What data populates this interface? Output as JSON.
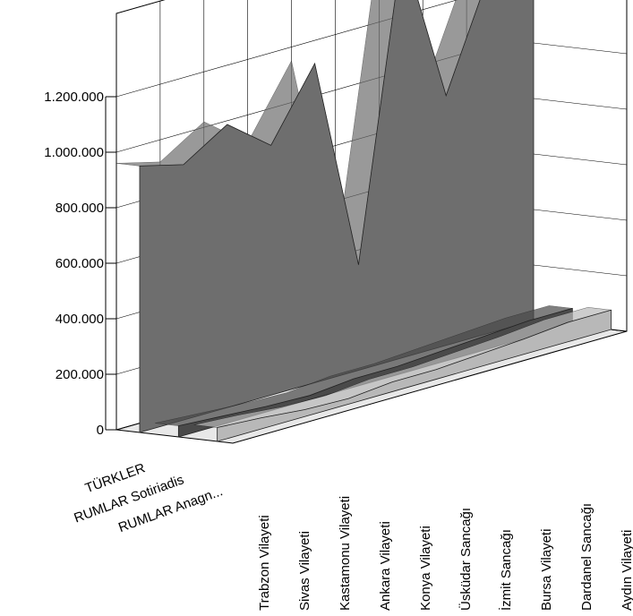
{
  "chart_data": {
    "type": "area3d",
    "categories": [
      "Trabzon Vilayeti",
      "Sivas Vilayeti",
      "Kastamonu Vilayeti",
      "Ankara Vilayeti",
      "Konya Vilayeti",
      "Üsküdar Sancağı",
      "İzmit Sancağı",
      "Bursa Vilayeti",
      "Dardanel Sancağı",
      "Aydın Vilayeti"
    ],
    "series": [
      {
        "name": "TÜRKLER",
        "color": "#6e6e6e",
        "values": [
          960000,
          920000,
          1020000,
          900000,
          1150000,
          380000,
          1480000,
          900000,
          1300000,
          1280000
        ]
      },
      {
        "name": "RUMLAR Sotiriadis",
        "color": "#4a4a4a",
        "values": [
          40000,
          30000,
          20000,
          15000,
          30000,
          30000,
          40000,
          50000,
          60000,
          60000
        ]
      },
      {
        "name": "RUMLAR Anagn...",
        "color": "#b8b8b8",
        "values": [
          50000,
          40000,
          25000,
          20000,
          35000,
          35000,
          45000,
          55000,
          70000,
          70000
        ]
      }
    ],
    "ylim": [
      0,
      1500000
    ],
    "yticks": [
      0,
      {
        "value": 200000,
        "label": "200.000"
      },
      {
        "value": 400000,
        "label": "400.000"
      },
      {
        "value": 600000,
        "label": "600.000"
      },
      {
        "value": 800000,
        "label": "800.000"
      },
      {
        "value": 1000000,
        "label": "1.000.000"
      },
      {
        "value": 1200000,
        "label": "1.200.000"
      }
    ],
    "grid": true
  }
}
